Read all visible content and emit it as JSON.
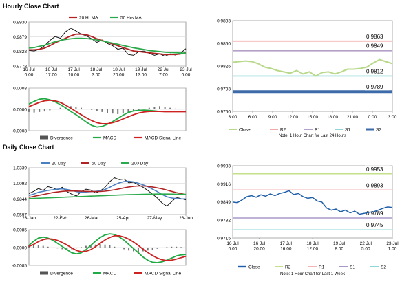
{
  "sections": {
    "hourly_title": "Hourly Close Chart",
    "daily_title": "Daily Close Chart"
  },
  "colors": {
    "price": "#111111",
    "ma_short": "#b22222",
    "ma_long": "#2aaa4a",
    "ma_mid": "#4a7fc1",
    "macd": "#22aa44",
    "signal": "#cc2222",
    "close": "#b8d88a",
    "r2": "#f0a8a8",
    "r1": "#b5a0c8",
    "s1": "#8fd6d6",
    "s2": "#3d6aa8",
    "daily_close": "#1f5fa8",
    "daily_r2": "#c4e08a",
    "daily_r1": "#f2b4b4",
    "daily_s1": "#a898c8",
    "daily_s2": "#8fd6d6"
  },
  "chart_data": [
    {
      "id": "hourly-price",
      "type": "line",
      "x_ticks": [
        "16 Jul\n0:00",
        "16 Jul\n17:00",
        "17 Jul\n10:00",
        "18 Jul\n3:00",
        "18 Jul\n20:00",
        "19 Jul\n13:00",
        "22 Jul\n7:00",
        "23 Jul\n0:00"
      ],
      "y_ticks": [
        "0.9930",
        "0.9879",
        "0.9828",
        "0.9778"
      ],
      "ylim": [
        0.9778,
        0.993
      ],
      "legend": [
        "20 Hr MA",
        "50 Hrs MA"
      ],
      "series": [
        {
          "name": "",
          "values": [
            0.9832,
            0.983,
            0.9836,
            0.9848,
            0.9866,
            0.988,
            0.9874,
            0.9896,
            0.9909,
            0.9899,
            0.9888,
            0.9882,
            0.9872,
            0.986,
            0.9868,
            0.9856,
            0.9848,
            0.9836,
            0.984,
            0.9818,
            0.9815,
            0.9828,
            0.983,
            0.9822,
            0.9815,
            0.982,
            0.9812,
            0.982,
            0.9816,
            0.9823,
            0.9838
          ]
        },
        {
          "name": "20 Hr MA",
          "values": [
            0.9834,
            0.9834,
            0.9836,
            0.984,
            0.9848,
            0.9858,
            0.9866,
            0.9874,
            0.9882,
            0.9888,
            0.9888,
            0.9886,
            0.988,
            0.9872,
            0.9866,
            0.986,
            0.9854,
            0.9848,
            0.9842,
            0.9836,
            0.983,
            0.9828,
            0.9826,
            0.9824,
            0.9822,
            0.982,
            0.9818,
            0.9818,
            0.9818,
            0.982,
            0.9824
          ]
        },
        {
          "name": "50 Hrs MA",
          "values": [
            0.984,
            0.9842,
            0.9846,
            0.985,
            0.9856,
            0.9862,
            0.9866,
            0.987,
            0.9872,
            0.9874,
            0.9874,
            0.9873,
            0.9871,
            0.9868,
            0.9865,
            0.9861,
            0.9857,
            0.9853,
            0.9849,
            0.9845,
            0.9841,
            0.9838,
            0.9835,
            0.9832,
            0.983,
            0.9828,
            0.9826,
            0.9825,
            0.9824,
            0.9823,
            0.9823
          ]
        }
      ]
    },
    {
      "id": "hourly-macd",
      "type": "line",
      "y_ticks": [
        "0.0008",
        "0.0000",
        "-0.0008"
      ],
      "ylim": [
        -0.0008,
        0.0008
      ],
      "legend": [
        "Divergence",
        "MACD",
        "MACD Signal Line"
      ],
      "series": [
        {
          "name": "Divergence",
          "values": [
            -0.0001,
            -0.00012,
            -0.0001,
            -8e-05,
            -4e-05,
            2e-05,
            6e-05,
            0.0001,
            0.00012,
            0.0001,
            6e-05,
            2e-05,
            -2e-05,
            -6e-05,
            -0.0001,
            -0.00014,
            -0.00016,
            -0.00018,
            -0.00016,
            -0.00012,
            -8e-05,
            -4e-05,
            2e-05,
            6e-05,
            0.0001,
            0.00012,
            0.0001,
            6e-05,
            3e-05,
            1e-05,
            0.0
          ]
        },
        {
          "name": "MACD",
          "values": [
            0.0002,
            0.0003,
            0.00038,
            0.0004,
            0.00036,
            0.00028,
            0.00018,
            6e-05,
            -8e-05,
            -0.0002,
            -0.00034,
            -0.00048,
            -0.0006,
            -0.00066,
            -0.00064,
            -0.00056,
            -0.00046,
            -0.00034,
            -0.00022,
            -0.00012,
            -6e-05,
            -4e-05,
            -3e-05,
            -4e-05,
            -6e-05,
            -8e-05,
            -8e-05,
            -8e-05,
            -8e-05,
            -8e-05,
            -8e-05
          ]
        },
        {
          "name": "MACD Signal Line",
          "values": [
            0.0001,
            0.00018,
            0.00026,
            0.00032,
            0.00034,
            0.00032,
            0.00026,
            0.00016,
            4e-05,
            -8e-05,
            -0.0002,
            -0.00032,
            -0.00042,
            -0.0005,
            -0.00054,
            -0.00054,
            -0.0005,
            -0.00044,
            -0.00036,
            -0.00028,
            -0.0002,
            -0.00014,
            -0.0001,
            -8e-05,
            -8e-05,
            -8e-05,
            -9e-05,
            -9e-05,
            -9e-05,
            -9e-05,
            -9e-05
          ]
        }
      ]
    },
    {
      "id": "hourly-levels",
      "type": "line",
      "x_ticks": [
        "3:00",
        "6:00",
        "9:00",
        "12:00",
        "15:00",
        "18:00",
        "21:00",
        "0:00",
        "3:00"
      ],
      "y_ticks": [
        "0.9893",
        "0.9860",
        "0.9826",
        "0.9793",
        "0.9760"
      ],
      "ylim": [
        0.976,
        0.9893
      ],
      "level_labels": [
        "0.9863",
        "0.9849",
        "0.9812",
        "0.9789"
      ],
      "legend": [
        "Close",
        "R2",
        "R1",
        "S1",
        "S2"
      ],
      "note": "Note: 1 Hour Chart for Last 24 Hours",
      "series": [
        {
          "name": "Close",
          "values": [
            0.9832,
            0.9833,
            0.9834,
            0.9833,
            0.983,
            0.9825,
            0.9823,
            0.982,
            0.9818,
            0.9816,
            0.982,
            0.9815,
            0.9818,
            0.9812,
            0.9817,
            0.9818,
            0.9815,
            0.9818,
            0.9822,
            0.9822,
            0.9823,
            0.9825,
            0.9831,
            0.9836,
            0.9833,
            0.983
          ]
        },
        {
          "name": "R2",
          "values": [
            0.9863,
            0.9863
          ]
        },
        {
          "name": "R1",
          "values": [
            0.9849,
            0.9849
          ]
        },
        {
          "name": "S1",
          "values": [
            0.9812,
            0.9812
          ]
        },
        {
          "name": "S2",
          "values": [
            0.9789,
            0.9789
          ]
        }
      ]
    },
    {
      "id": "daily-price",
      "type": "line",
      "x_ticks": [
        "23-Jan",
        "22-Feb",
        "26-Mar",
        "25-Apr",
        "27-May",
        "26-Jun"
      ],
      "y_ticks": [
        "1.0339",
        "1.0092",
        "0.9844",
        "0.9597"
      ],
      "ylim": [
        0.9597,
        1.0339
      ],
      "legend": [
        "20 Day",
        "50 Day",
        "200 Day"
      ],
      "series": [
        {
          "name": "",
          "values": [
            0.993,
            0.9965,
            1.001,
            0.998,
            1.004,
            1.002,
            0.999,
            1.003,
            0.996,
            0.992,
            0.989,
            0.996,
            1.0,
            0.9985,
            0.994,
            0.997,
            1.003,
            1.012,
            1.018,
            1.015,
            1.016,
            1.01,
            1.011,
            1.007,
            1.003,
            0.998,
            0.992,
            0.986,
            0.978,
            0.973,
            0.98,
            0.987,
            0.985,
            0.983
          ]
        },
        {
          "name": "20 Day",
          "values": [
            0.99,
            0.992,
            0.995,
            0.9965,
            0.998,
            0.999,
            1.0,
            1.0005,
            0.9995,
            0.998,
            0.996,
            0.995,
            0.9955,
            0.996,
            0.9965,
            0.9975,
            0.9995,
            1.003,
            1.007,
            1.01,
            1.012,
            1.0125,
            1.0115,
            1.0095,
            1.007,
            1.004,
            1.0,
            0.996,
            0.9915,
            0.988,
            0.986,
            0.985,
            0.9845,
            0.9845
          ]
        },
        {
          "name": "50 Day",
          "values": [
            0.987,
            0.9885,
            0.99,
            0.9915,
            0.993,
            0.9945,
            0.9955,
            0.9965,
            0.997,
            0.9972,
            0.997,
            0.9968,
            0.9965,
            0.9963,
            0.9962,
            0.9963,
            0.9968,
            0.9978,
            0.999,
            1.0005,
            1.002,
            1.0035,
            1.0045,
            1.005,
            1.005,
            1.0045,
            1.0035,
            1.002,
            1.0005,
            0.9985,
            0.9965,
            0.9945,
            0.993,
            0.9915
          ]
        },
        {
          "name": "200 Day",
          "values": [
            0.985,
            0.9853,
            0.9856,
            0.9859,
            0.9862,
            0.9865,
            0.9868,
            0.9871,
            0.9874,
            0.9877,
            0.988,
            0.9883,
            0.9886,
            0.9889,
            0.9892,
            0.9895,
            0.9898,
            0.9901,
            0.9904,
            0.9907,
            0.991,
            0.9912,
            0.9914,
            0.9916,
            0.9918,
            0.992,
            0.9921,
            0.9922,
            0.9922,
            0.9922,
            0.9921,
            0.992,
            0.9919,
            0.9918
          ]
        }
      ]
    },
    {
      "id": "daily-macd",
      "type": "line",
      "y_ticks": [
        "0.0085",
        "0.0000",
        "-0.0085"
      ],
      "ylim": [
        -0.0085,
        0.0085
      ],
      "legend": [
        "Divergence",
        "MACD",
        "MACD Signal Line"
      ],
      "series": [
        {
          "name": "Divergence",
          "values": [
            0.001,
            0.0014,
            0.0012,
            0.0008,
            0.0004,
            0.0,
            -0.0004,
            -0.0008,
            -0.001,
            -0.0008,
            -0.0004,
            0.0002,
            0.0008,
            0.0012,
            0.0014,
            0.0016,
            0.0014,
            0.001,
            0.0004,
            -0.0002,
            -0.0008,
            -0.0014,
            -0.0018,
            -0.002,
            -0.0018,
            -0.0014,
            -0.001,
            -0.0006,
            -0.0002,
            0.0002,
            0.0004,
            0.0004,
            0.0002,
            0.0
          ]
        },
        {
          "name": "MACD",
          "values": [
            0.001,
            0.003,
            0.0045,
            0.005,
            0.0045,
            0.0035,
            0.002,
            0.0005,
            -0.001,
            -0.0025,
            -0.003,
            -0.0025,
            -0.001,
            0.001,
            0.003,
            0.0048,
            0.006,
            0.0065,
            0.0062,
            0.005,
            0.0035,
            0.0015,
            -0.0005,
            -0.0025,
            -0.0045,
            -0.006,
            -0.007,
            -0.0072,
            -0.0068,
            -0.006,
            -0.005,
            -0.004,
            -0.0035,
            -0.0033
          ]
        },
        {
          "name": "MACD Signal Line",
          "values": [
            0.0005,
            0.0015,
            0.0028,
            0.0038,
            0.0042,
            0.004,
            0.0034,
            0.0024,
            0.0012,
            -0.0002,
            -0.0014,
            -0.002,
            -0.0018,
            -0.001,
            0.0004,
            0.002,
            0.0036,
            0.0048,
            0.0056,
            0.0056,
            0.005,
            0.004,
            0.0026,
            0.001,
            -0.0008,
            -0.0024,
            -0.0038,
            -0.005,
            -0.0058,
            -0.0062,
            -0.006,
            -0.0055,
            -0.0048,
            -0.0042
          ]
        }
      ]
    },
    {
      "id": "daily-levels",
      "type": "line",
      "x_ticks": [
        "16 Jul\n0:00",
        "16 Jul\n20:00",
        "17 Jul\n16:00",
        "18 Jul\n12:00",
        "19 Jul\n8:00",
        "22 Jul\n5:00",
        "23 Jul\n1:00"
      ],
      "y_ticks": [
        "0.9983",
        "0.9916",
        "0.9849",
        "0.9782",
        "0.9715"
      ],
      "ylim": [
        0.9715,
        0.9983
      ],
      "level_labels": [
        "0.9953",
        "0.9893",
        "0.9789",
        "0.9745"
      ],
      "legend": [
        "Close",
        "R2",
        "R1",
        "S1",
        "S2"
      ],
      "note": "Note: 1 Hour Chart for Last 1 Week",
      "series": [
        {
          "name": "Close",
          "values": [
            0.9848,
            0.9846,
            0.9856,
            0.9868,
            0.9872,
            0.9866,
            0.9875,
            0.987,
            0.9878,
            0.9872,
            0.988,
            0.9884,
            0.989,
            0.9876,
            0.988,
            0.9868,
            0.9862,
            0.9865,
            0.9852,
            0.9848,
            0.9826,
            0.9818,
            0.9822,
            0.9812,
            0.9818,
            0.9808,
            0.9814,
            0.9803,
            0.9806,
            0.981,
            0.9812,
            0.9818,
            0.9825,
            0.983,
            0.9828
          ]
        },
        {
          "name": "R2",
          "values": [
            0.9953,
            0.9953
          ]
        },
        {
          "name": "R1",
          "values": [
            0.9893,
            0.9893
          ]
        },
        {
          "name": "S1",
          "values": [
            0.9789,
            0.9789
          ]
        },
        {
          "name": "S2",
          "values": [
            0.9745,
            0.9745
          ]
        }
      ]
    }
  ]
}
